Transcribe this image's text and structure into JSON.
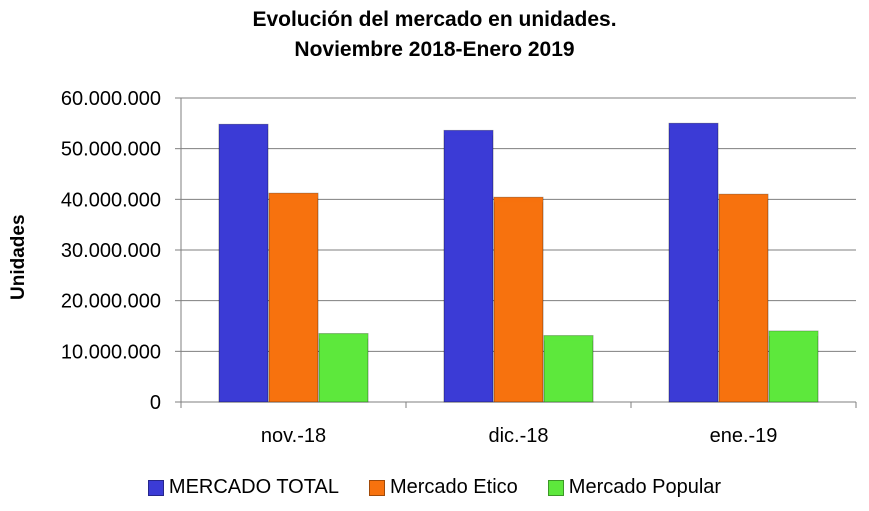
{
  "chart_data": {
    "type": "bar",
    "title_lines": [
      "Evolución del mercado en unidades.",
      "Noviembre 2018-Enero 2019"
    ],
    "ylabel": "Unidades",
    "xlabel": "",
    "categories": [
      "nov.-18",
      "dic.-18",
      "ene.-19"
    ],
    "ylim": [
      0,
      60000000
    ],
    "yticks": [
      0,
      10000000,
      20000000,
      30000000,
      40000000,
      50000000,
      60000000
    ],
    "ytick_labels": [
      "0",
      "10.000.000",
      "20.000.000",
      "30.000.000",
      "40.000.000",
      "50.000.000",
      "60.000.000"
    ],
    "grid": true,
    "legend_position": "bottom",
    "series": [
      {
        "name": "MERCADO TOTAL",
        "color": "#3b3bd6",
        "values": [
          54800000,
          53600000,
          55000000
        ]
      },
      {
        "name": "Mercado Etico",
        "color": "#f7720e",
        "values": [
          41200000,
          40400000,
          41000000
        ]
      },
      {
        "name": "Mercado Popular",
        "color": "#5de83c",
        "values": [
          13500000,
          13100000,
          14000000
        ]
      }
    ]
  }
}
